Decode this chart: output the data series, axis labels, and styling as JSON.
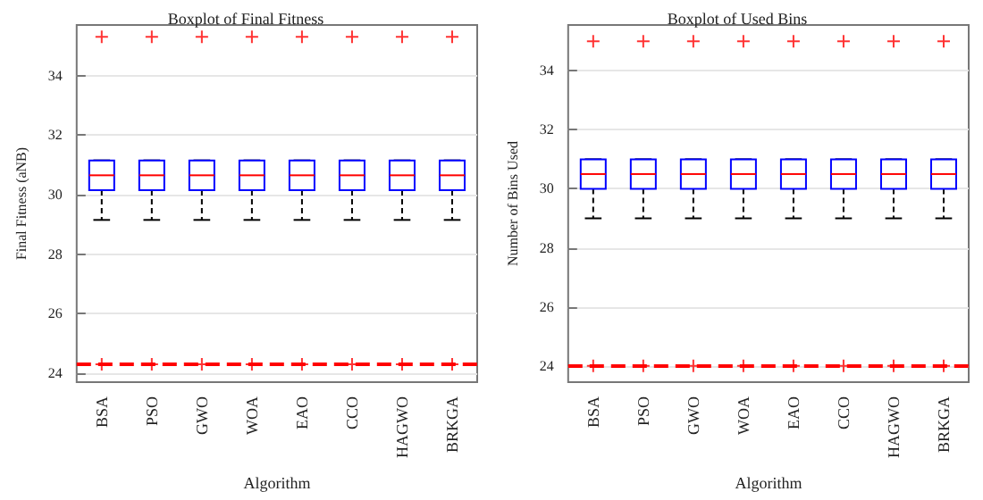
{
  "chart_data": [
    {
      "type": "box",
      "title": "Boxplot of Final Fitness",
      "xlabel": "Algorithm",
      "ylabel": "Final Fitness (aNB)",
      "categories": [
        "BSA",
        "PSO",
        "GWO",
        "WOA",
        "EAO",
        "CCO",
        "HAGWO",
        "BRKGA"
      ],
      "series": [
        {
          "color": "#0000ff",
          "boxes": [
            {
              "low": 29.15,
              "q1": 30.15,
              "median": 30.65,
              "q3": 31.15,
              "high": 31.15,
              "outliers": [
                35.3,
                24.3
              ]
            },
            {
              "low": 29.15,
              "q1": 30.15,
              "median": 30.65,
              "q3": 31.15,
              "high": 31.15,
              "outliers": [
                35.3,
                24.3
              ]
            },
            {
              "low": 29.15,
              "q1": 30.15,
              "median": 30.65,
              "q3": 31.15,
              "high": 31.15,
              "outliers": [
                35.3,
                24.3
              ]
            },
            {
              "low": 29.15,
              "q1": 30.15,
              "median": 30.65,
              "q3": 31.15,
              "high": 31.15,
              "outliers": [
                35.3,
                24.3
              ]
            },
            {
              "low": 29.15,
              "q1": 30.15,
              "median": 30.65,
              "q3": 31.15,
              "high": 31.15,
              "outliers": [
                35.3,
                24.3
              ]
            },
            {
              "low": 29.15,
              "q1": 30.15,
              "median": 30.65,
              "q3": 31.15,
              "high": 31.15,
              "outliers": [
                35.3,
                24.3
              ]
            },
            {
              "low": 29.15,
              "q1": 30.15,
              "median": 30.65,
              "q3": 31.15,
              "high": 31.15,
              "outliers": [
                35.3,
                24.3
              ]
            },
            {
              "low": 29.15,
              "q1": 30.15,
              "median": 30.65,
              "q3": 31.15,
              "high": 31.15,
              "outliers": [
                35.3,
                24.3
              ]
            }
          ]
        }
      ],
      "ref_lines": [
        {
          "axis": "y",
          "value": 24.3,
          "label": null,
          "color": "#ff0000",
          "line_style": "dashed"
        }
      ],
      "ylim": [
        23.7,
        35.7
      ],
      "yticks": [
        24,
        26,
        28,
        30,
        32,
        34
      ],
      "grid": "y"
    },
    {
      "type": "box",
      "title": "Boxplot of Used Bins",
      "xlabel": "Algorithm",
      "ylabel": "Number of Bins Used",
      "categories": [
        "BSA",
        "PSO",
        "GWO",
        "WOA",
        "EAO",
        "CCO",
        "HAGWO",
        "BRKGA"
      ],
      "series": [
        {
          "color": "#0000ff",
          "boxes": [
            {
              "low": 29,
              "q1": 30,
              "median": 30.5,
              "q3": 31,
              "high": 31,
              "outliers": [
                35,
                24
              ]
            },
            {
              "low": 29,
              "q1": 30,
              "median": 30.5,
              "q3": 31,
              "high": 31,
              "outliers": [
                35,
                24
              ]
            },
            {
              "low": 29,
              "q1": 30,
              "median": 30.5,
              "q3": 31,
              "high": 31,
              "outliers": [
                35,
                24
              ]
            },
            {
              "low": 29,
              "q1": 30,
              "median": 30.5,
              "q3": 31,
              "high": 31,
              "outliers": [
                35,
                24
              ]
            },
            {
              "low": 29,
              "q1": 30,
              "median": 30.5,
              "q3": 31,
              "high": 31,
              "outliers": [
                35,
                24
              ]
            },
            {
              "low": 29,
              "q1": 30,
              "median": 30.5,
              "q3": 31,
              "high": 31,
              "outliers": [
                35,
                24
              ]
            },
            {
              "low": 29,
              "q1": 30,
              "median": 30.5,
              "q3": 31,
              "high": 31,
              "outliers": [
                35,
                24
              ]
            },
            {
              "low": 29,
              "q1": 30,
              "median": 30.5,
              "q3": 31,
              "high": 31,
              "outliers": [
                35,
                24
              ]
            }
          ]
        }
      ],
      "ref_lines": [
        {
          "axis": "y",
          "value": 24,
          "label": null,
          "color": "#ff0000",
          "line_style": "dashed"
        }
      ],
      "ylim": [
        23.45,
        35.55
      ],
      "yticks": [
        24,
        26,
        28,
        30,
        32,
        34
      ],
      "grid": "y"
    }
  ]
}
